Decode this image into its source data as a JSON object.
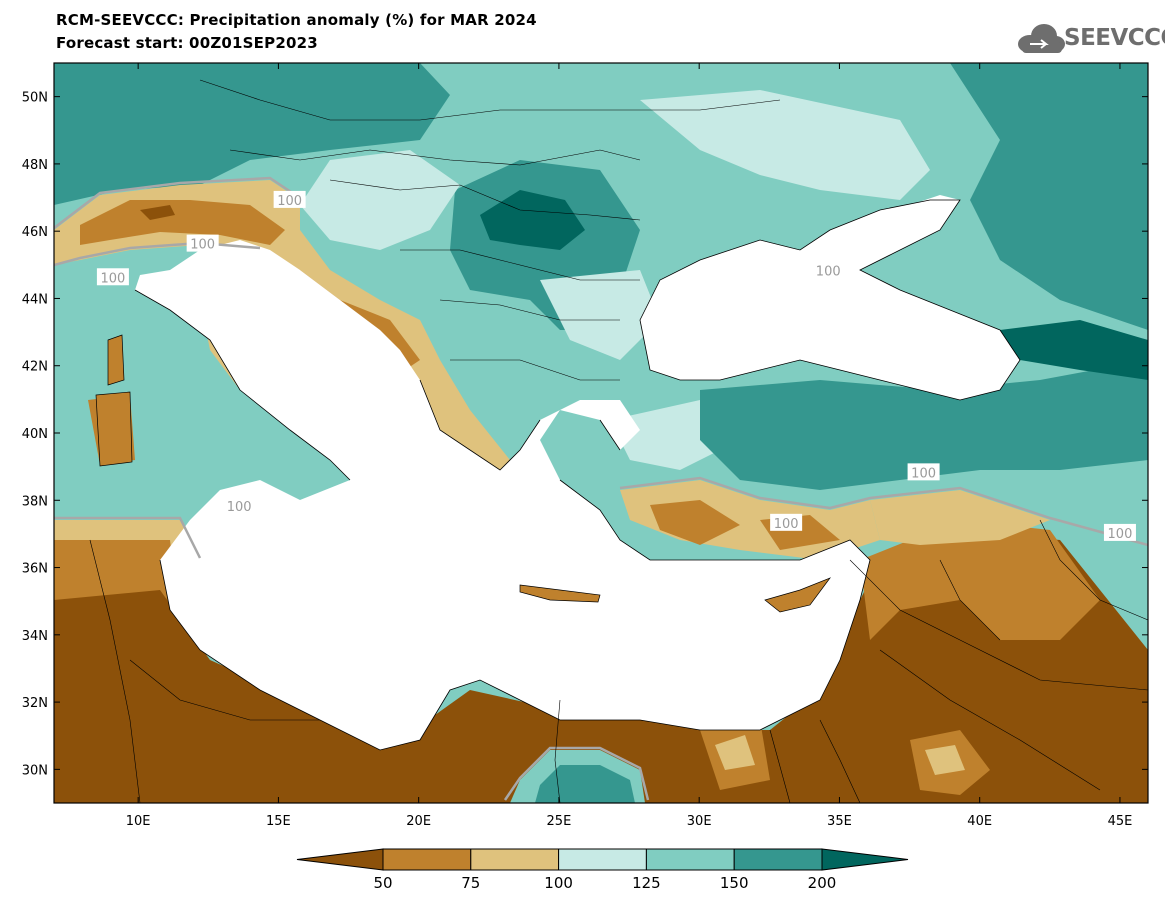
{
  "header": {
    "title_line1": "RCM-SEEVCCC: Precipitation anomaly (%) for MAR 2024",
    "title_line2": "Forecast start: 00Z01SEP2023",
    "logo_text": "SEEVCCC"
  },
  "map": {
    "lon_range": [
      7,
      46
    ],
    "lat_range": [
      29,
      51
    ],
    "x_ticks": [
      {
        "lon": 10,
        "label": "10E"
      },
      {
        "lon": 15,
        "label": "15E"
      },
      {
        "lon": 20,
        "label": "20E"
      },
      {
        "lon": 25,
        "label": "25E"
      },
      {
        "lon": 30,
        "label": "30E"
      },
      {
        "lon": 35,
        "label": "35E"
      },
      {
        "lon": 40,
        "label": "40E"
      },
      {
        "lon": 45,
        "label": "45E"
      }
    ],
    "y_ticks": [
      {
        "lat": 50,
        "label": "50N"
      },
      {
        "lat": 48,
        "label": "48N"
      },
      {
        "lat": 46,
        "label": "46N"
      },
      {
        "lat": 44,
        "label": "44N"
      },
      {
        "lat": 42,
        "label": "42N"
      },
      {
        "lat": 40,
        "label": "40N"
      },
      {
        "lat": 38,
        "label": "38N"
      },
      {
        "lat": 36,
        "label": "36N"
      },
      {
        "lat": 34,
        "label": "34N"
      },
      {
        "lat": 32,
        "label": "32N"
      },
      {
        "lat": 30,
        "label": "30N"
      }
    ],
    "contour_labels": [
      {
        "lon": 15.4,
        "lat": 46.9,
        "text": "100"
      },
      {
        "lon": 12.3,
        "lat": 45.6,
        "text": "100"
      },
      {
        "lon": 9.1,
        "lat": 44.6,
        "text": "100"
      },
      {
        "lon": 34.6,
        "lat": 44.8,
        "text": "100"
      },
      {
        "lon": 13.6,
        "lat": 37.8,
        "text": "100"
      },
      {
        "lon": 38.0,
        "lat": 38.8,
        "text": "100"
      },
      {
        "lon": 33.1,
        "lat": 37.3,
        "text": "100"
      },
      {
        "lon": 45.0,
        "lat": 37.0,
        "text": "100"
      }
    ]
  },
  "colorbar": {
    "colors": [
      "#8c510a",
      "#bf812d",
      "#dfc27d",
      "#c7eae5",
      "#80cdc1",
      "#35978f",
      "#01665e"
    ],
    "labels": [
      "50",
      "75",
      "100",
      "125",
      "150",
      "200"
    ]
  },
  "legend_colors": {
    "sea": "#ffffff",
    "contour_line": "#a8a8a8"
  }
}
